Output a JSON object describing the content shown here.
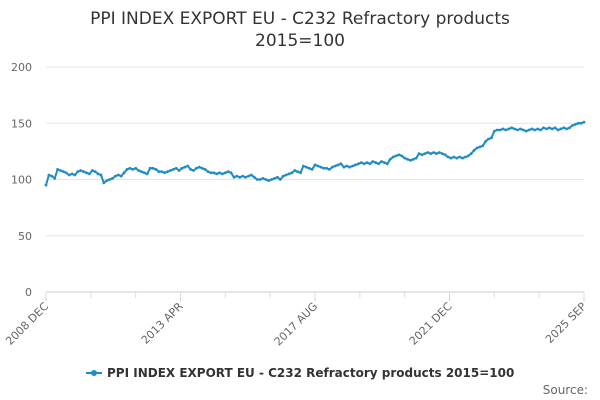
{
  "chart_data": {
    "type": "line",
    "title_lines": [
      "PPI INDEX EXPORT EU - C232 Refractory products",
      "2015=100"
    ],
    "y_ticks": [
      0,
      50,
      100,
      150,
      200
    ],
    "ylim": [
      0,
      200
    ],
    "x_ticks": [
      "2008 DEC",
      "2013 APR",
      "2017 AUG",
      "2021 DEC",
      "2025 SEP"
    ],
    "grid": "horizontal",
    "legend_position": "bottom-center",
    "series": [
      {
        "name": "PPI INDEX EXPORT EU - C232 Refractory products 2015=100",
        "color": "#1f8dc4",
        "values": [
          95,
          104,
          103,
          101,
          109,
          108,
          107,
          106,
          104,
          105,
          104,
          107,
          108,
          107,
          106,
          105,
          108,
          107,
          105,
          104,
          97,
          99,
          100,
          101,
          103,
          104,
          103,
          106,
          109,
          110,
          109,
          110,
          108,
          107,
          106,
          105,
          110,
          110,
          109,
          107,
          107,
          106,
          107,
          108,
          109,
          110,
          108,
          110,
          111,
          112,
          109,
          108,
          110,
          111,
          110,
          109,
          107,
          106,
          106,
          105,
          106,
          105,
          106,
          107,
          106,
          102,
          103,
          102,
          103,
          102,
          103,
          104,
          102,
          100,
          100,
          101,
          100,
          99,
          100,
          101,
          102,
          100,
          103,
          104,
          105,
          106,
          108,
          107,
          106,
          112,
          111,
          110,
          109,
          113,
          112,
          111,
          110,
          110,
          109,
          111,
          112,
          113,
          114,
          111,
          112,
          111,
          112,
          113,
          114,
          115,
          114,
          115,
          114,
          116,
          115,
          114,
          116,
          115,
          114,
          118,
          120,
          121,
          122,
          121,
          119,
          118,
          117,
          118,
          119,
          123,
          122,
          123,
          124,
          123,
          124,
          123,
          124,
          123,
          122,
          120,
          119,
          120,
          119,
          120,
          119,
          120,
          121,
          123,
          126,
          128,
          129,
          130,
          134,
          136,
          137,
          143,
          144,
          144,
          145,
          144,
          145,
          146,
          145,
          144,
          145,
          144,
          143,
          144,
          145,
          144,
          145,
          144,
          146,
          145,
          146,
          145,
          146,
          144,
          145,
          146,
          145,
          146,
          148,
          149,
          150,
          150,
          151
        ]
      }
    ],
    "credit": "Source:"
  }
}
